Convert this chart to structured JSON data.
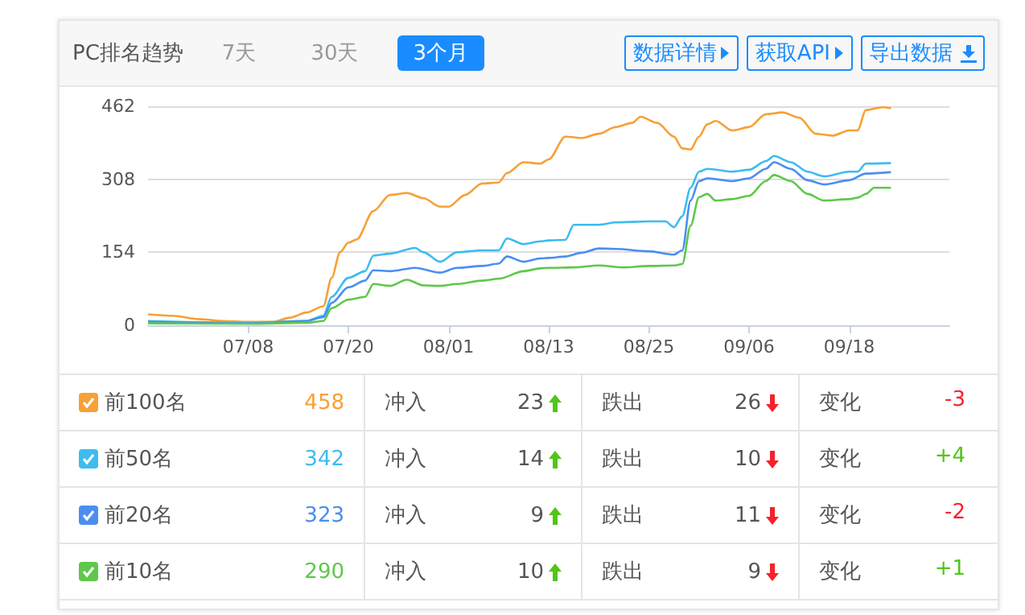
{
  "chart_data": {
    "type": "line",
    "title": "PC排名趋势",
    "annotations": [
      "7天",
      "30天",
      "3个月",
      "数据详情",
      "获取API",
      "导出数据",
      "458",
      "冲入",
      "23",
      "跌出",
      "26",
      "变化",
      "-3",
      "342",
      "冲入",
      "14",
      "跌出",
      "10",
      "变化",
      "+4",
      "323",
      "冲入",
      "9",
      "跌出",
      "11",
      "变化",
      "-2",
      "290",
      "冲入",
      "10",
      "跌出",
      "9",
      "变化",
      "+1"
    ],
    "xlim": [
      "--06-26",
      "--09-30"
    ],
    "xticks": [
      {
        "value": "--07-08",
        "label": "07/08"
      },
      {
        "value": "--07-20",
        "label": "07/20"
      },
      {
        "value": "--08-01",
        "label": "08/01"
      },
      {
        "value": "--08-13",
        "label": "08/13"
      },
      {
        "value": "--08-25",
        "label": "08/25"
      },
      {
        "value": "--09-06",
        "label": "09/06"
      },
      {
        "value": "--09-18",
        "label": "09/18"
      }
    ],
    "ylim": [
      0,
      462
    ],
    "yticks": [
      0,
      154,
      308,
      462
    ],
    "grid": "y",
    "legend": "bottom",
    "marker": "none",
    "line_style": "solid",
    "series": [
      {
        "name": "前100名",
        "color": "#f7a035",
        "x": [
          "--06-26",
          "--06-29",
          "--07-02",
          "--07-05",
          "--07-08",
          "--07-11",
          "--07-13",
          "--07-15",
          "--07-17",
          "--07-18",
          "--07-19",
          "--07-20",
          "--07-21",
          "--07-23",
          "--07-25",
          "--07-27",
          "--07-29",
          "--07-31",
          "--08-01",
          "--08-03",
          "--08-05",
          "--08-07",
          "--08-08",
          "--08-10",
          "--08-12",
          "--08-13",
          "--08-15",
          "--08-17",
          "--08-19",
          "--08-21",
          "--08-23",
          "--08-24",
          "--08-26",
          "--08-28",
          "--08-29",
          "--08-30",
          "--08-31",
          "--09-01",
          "--09-02",
          "--09-04",
          "--09-06",
          "--09-08",
          "--09-10",
          "--09-12",
          "--09-14",
          "--09-16",
          "--09-18",
          "--09-19",
          "--09-20",
          "--09-22",
          "--09-23"
        ],
        "values": [
          23,
          20,
          13,
          9,
          7,
          7,
          16,
          27,
          40,
          100,
          154,
          174,
          181,
          241,
          275,
          279,
          268,
          250,
          250,
          275,
          299,
          301,
          321,
          344,
          341,
          350,
          398,
          395,
          404,
          418,
          427,
          440,
          427,
          398,
          373,
          371,
          398,
          424,
          431,
          411,
          418,
          445,
          449,
          438,
          404,
          400,
          411,
          411,
          454,
          460,
          458
        ]
      },
      {
        "name": "前50名",
        "color": "#3cbcf0",
        "x": [
          "--06-26",
          "--07-08",
          "--07-15",
          "--07-17",
          "--07-18",
          "--07-20",
          "--07-22",
          "--07-23",
          "--07-25",
          "--07-28",
          "--07-29",
          "--07-31",
          "--08-02",
          "--08-05",
          "--08-07",
          "--08-08",
          "--08-10",
          "--08-12",
          "--08-13",
          "--08-15",
          "--08-16",
          "--08-19",
          "--08-21",
          "--08-25",
          "--08-27",
          "--08-28",
          "--08-29",
          "--08-30",
          "--08-31",
          "--09-01",
          "--09-04",
          "--09-06",
          "--09-08",
          "--09-09",
          "--09-11",
          "--09-13",
          "--09-15",
          "--09-18",
          "--09-19",
          "--09-20",
          "--09-23"
        ],
        "values": [
          9,
          5,
          9,
          20,
          60,
          100,
          114,
          147,
          151,
          163,
          154,
          134,
          154,
          158,
          158,
          183,
          171,
          177,
          179,
          180,
          212,
          212,
          217,
          219,
          219,
          207,
          230,
          290,
          324,
          330,
          324,
          328,
          346,
          357,
          344,
          324,
          314,
          324,
          324,
          341,
          342
        ]
      },
      {
        "name": "前20名",
        "color": "#4b8ef0",
        "x": [
          "--06-26",
          "--07-08",
          "--07-15",
          "--07-17",
          "--07-18",
          "--07-20",
          "--07-22",
          "--07-23",
          "--07-25",
          "--07-28",
          "--07-31",
          "--08-02",
          "--08-05",
          "--08-07",
          "--08-08",
          "--08-10",
          "--08-12",
          "--08-13",
          "--08-15",
          "--08-17",
          "--08-19",
          "--08-21",
          "--08-25",
          "--08-28",
          "--08-29",
          "--08-30",
          "--08-31",
          "--09-01",
          "--09-04",
          "--09-06",
          "--09-08",
          "--09-09",
          "--09-11",
          "--09-13",
          "--09-15",
          "--09-18",
          "--09-20",
          "--09-23"
        ],
        "values": [
          7,
          4,
          9,
          17,
          47,
          80,
          94,
          116,
          114,
          121,
          111,
          121,
          125,
          130,
          145,
          134,
          141,
          142,
          145,
          153,
          162,
          161,
          156,
          149,
          158,
          263,
          304,
          310,
          304,
          310,
          330,
          344,
          330,
          306,
          297,
          306,
          320,
          323
        ]
      },
      {
        "name": "前10名",
        "color": "#5ec84a",
        "x": [
          "--06-26",
          "--07-08",
          "--07-15",
          "--07-17",
          "--07-18",
          "--07-20",
          "--07-22",
          "--07-23",
          "--07-25",
          "--07-27",
          "--07-29",
          "--07-31",
          "--08-02",
          "--08-05",
          "--08-07",
          "--08-10",
          "--08-12",
          "--08-13",
          "--08-16",
          "--08-19",
          "--08-22",
          "--08-25",
          "--08-28",
          "--08-29",
          "--08-30",
          "--08-31",
          "--09-01",
          "--09-02",
          "--09-04",
          "--09-06",
          "--09-08",
          "--09-09",
          "--09-11",
          "--09-13",
          "--09-15",
          "--09-18",
          "--09-19",
          "--09-20",
          "--09-21",
          "--09-23"
        ],
        "values": [
          4,
          3,
          5,
          9,
          36,
          54,
          60,
          87,
          83,
          96,
          84,
          83,
          87,
          94,
          98,
          114,
          120,
          121,
          122,
          126,
          122,
          125,
          126,
          129,
          210,
          270,
          277,
          263,
          266,
          273,
          304,
          317,
          304,
          277,
          263,
          266,
          269,
          277,
          290,
          290
        ]
      }
    ]
  }
}
